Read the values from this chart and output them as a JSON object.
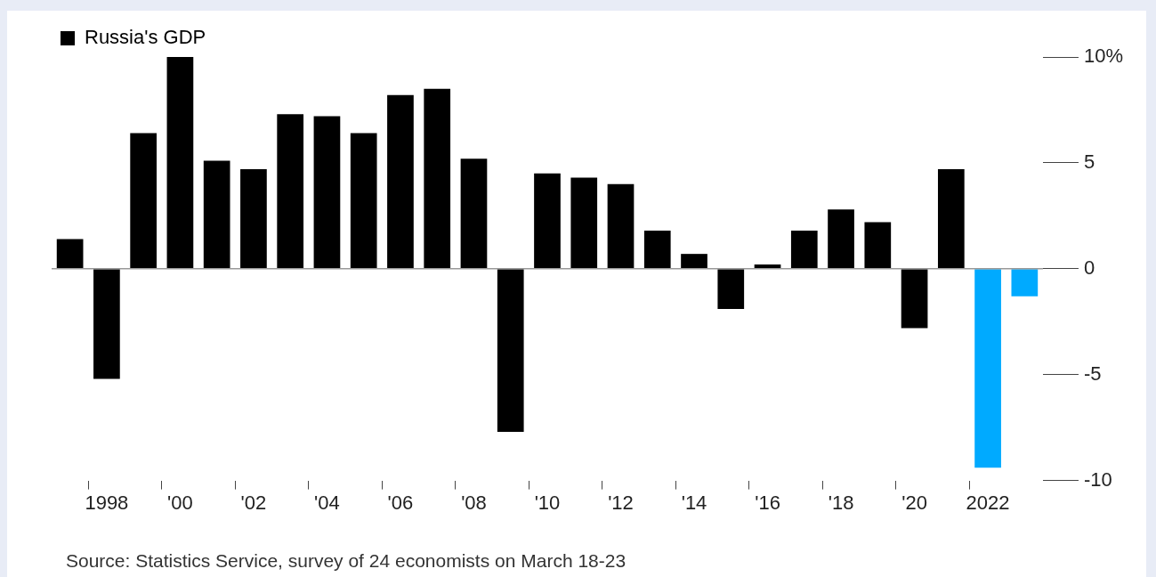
{
  "chart_data": {
    "type": "bar",
    "categories": [
      null,
      "1998",
      null,
      "'00",
      null,
      "'02",
      null,
      "'04",
      null,
      "'06",
      null,
      "'08",
      null,
      "'10",
      null,
      "'12",
      null,
      "'14",
      null,
      "'16",
      null,
      "'18",
      null,
      "'20",
      null,
      "2022",
      null
    ],
    "series": [
      {
        "name": "Russia's GDP",
        "color": "#000000",
        "colors": [
          "#000000",
          "#000000",
          "#000000",
          "#000000",
          "#000000",
          "#000000",
          "#000000",
          "#000000",
          "#000000",
          "#000000",
          "#000000",
          "#000000",
          "#000000",
          "#000000",
          "#000000",
          "#000000",
          "#000000",
          "#000000",
          "#000000",
          "#000000",
          "#000000",
          "#000000",
          "#000000",
          "#000000",
          "#000000",
          "#00aaff",
          "#00aaff"
        ],
        "values": [
          1.4,
          -5.2,
          6.4,
          10.0,
          5.1,
          4.7,
          7.3,
          7.2,
          6.4,
          8.2,
          8.5,
          5.2,
          -7.7,
          4.5,
          4.3,
          4.0,
          1.8,
          0.7,
          -1.9,
          0.2,
          1.8,
          2.8,
          2.2,
          -2.8,
          4.7,
          -9.4,
          -1.3
        ]
      }
    ],
    "ylim": [
      -10,
      10
    ],
    "yticks": [
      {
        "value": -10,
        "label": "-10"
      },
      {
        "value": -5,
        "label": "-5"
      },
      0,
      5,
      {
        "value": 10,
        "label": "10%"
      }
    ],
    "grid": "y",
    "legend": "top left",
    "annotations": [
      "Source: Statistics Service, survey of 24 economists on March 18-23"
    ]
  }
}
